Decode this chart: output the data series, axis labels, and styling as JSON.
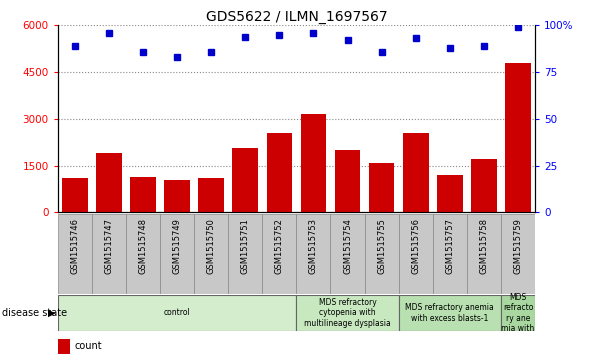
{
  "title": "GDS5622 / ILMN_1697567",
  "samples": [
    "GSM1515746",
    "GSM1515747",
    "GSM1515748",
    "GSM1515749",
    "GSM1515750",
    "GSM1515751",
    "GSM1515752",
    "GSM1515753",
    "GSM1515754",
    "GSM1515755",
    "GSM1515756",
    "GSM1515757",
    "GSM1515758",
    "GSM1515759"
  ],
  "counts": [
    1100,
    1900,
    1150,
    1050,
    1100,
    2050,
    2550,
    3150,
    2000,
    1600,
    2550,
    1200,
    1700,
    4800
  ],
  "percentiles": [
    89,
    96,
    86,
    83,
    86,
    94,
    95,
    96,
    92,
    86,
    93,
    88,
    89,
    99
  ],
  "ylim_left": [
    0,
    6000
  ],
  "ylim_right": [
    0,
    100
  ],
  "yticks_left": [
    0,
    1500,
    3000,
    4500,
    6000
  ],
  "yticks_right": [
    0,
    25,
    50,
    75,
    100
  ],
  "disease_groups": [
    {
      "label": "control",
      "start": 0,
      "end": 7,
      "color": "#d4edcc"
    },
    {
      "label": "MDS refractory\ncytopenia with\nmultilineage dysplasia",
      "start": 7,
      "end": 10,
      "color": "#c8e8c0"
    },
    {
      "label": "MDS refractory anemia\nwith excess blasts-1",
      "start": 10,
      "end": 13,
      "color": "#b8e0b0"
    },
    {
      "label": "MDS\nrefracto\nry ane\nmia with",
      "start": 13,
      "end": 14,
      "color": "#a8d8a0"
    }
  ],
  "bar_color": "#cc0000",
  "dot_color": "#0000cc",
  "grid_color": "#888888",
  "tick_bg_color": "#c8c8c8",
  "tick_line_color": "#888888"
}
